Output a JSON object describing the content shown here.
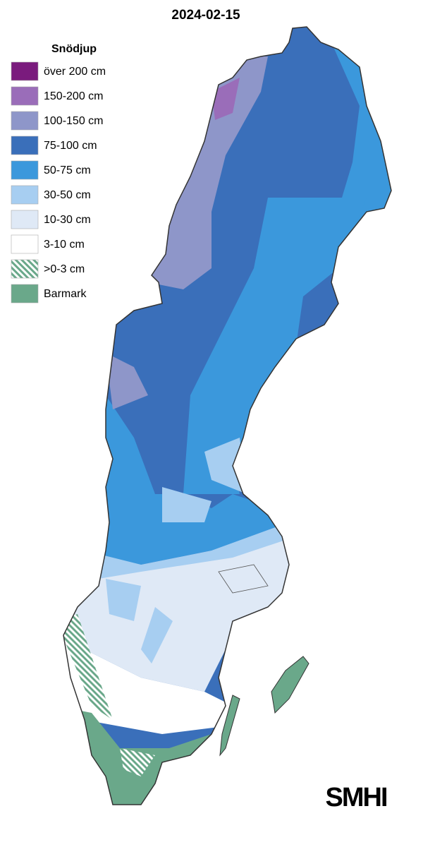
{
  "title": "2024-02-15",
  "legend": {
    "title": "Snödjup",
    "items": [
      {
        "label": "över 200 cm",
        "color": "#7a1b7d"
      },
      {
        "label": "150-200 cm",
        "color": "#9a6db9"
      },
      {
        "label": "100-150 cm",
        "color": "#8e96c9"
      },
      {
        "label": "75-100 cm",
        "color": "#3a6fba"
      },
      {
        "label": "50-75 cm",
        "color": "#3b98dc"
      },
      {
        "label": "30-50 cm",
        "color": "#a7cef1"
      },
      {
        "label": "10-30 cm",
        "color": "#dfe9f6"
      },
      {
        "label": "3-10 cm",
        "color": "#ffffff"
      },
      {
        "label": ">0-3 cm",
        "color": "#6aa88a",
        "hatched": true
      },
      {
        "label": "Barmark",
        "color": "#6aa88a"
      }
    ]
  },
  "logo": "SMHI"
}
